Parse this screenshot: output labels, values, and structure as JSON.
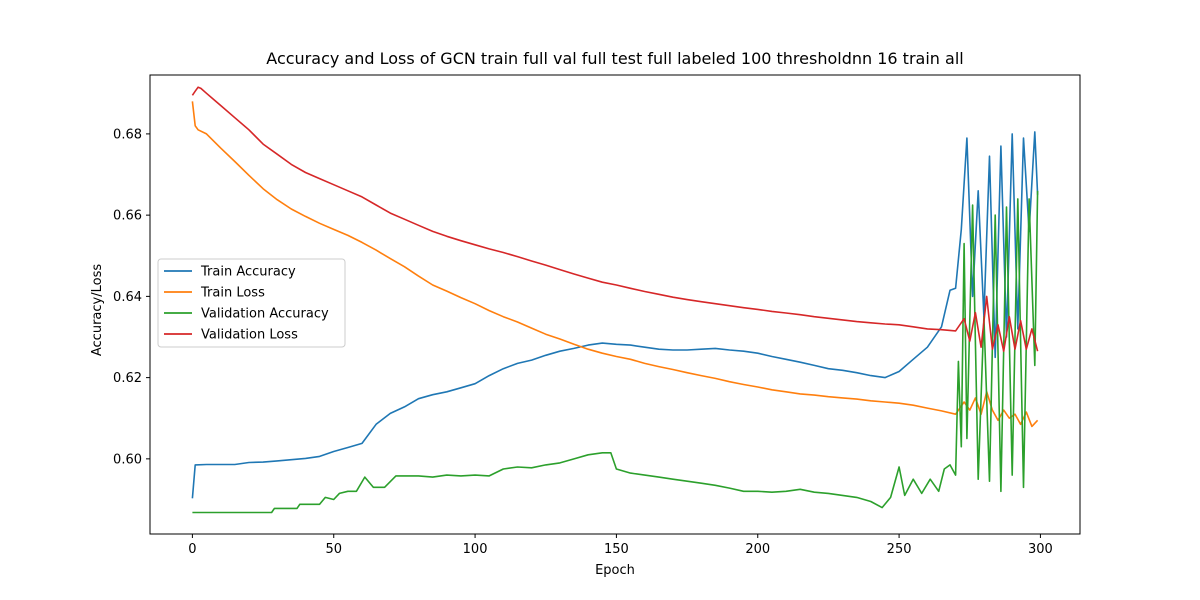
{
  "chart_data": {
    "type": "line",
    "title": "Accuracy and Loss of GCN train full val full test full labeled 100 thresholdnn 16 train all",
    "xlabel": "Epoch",
    "ylabel": "Accuracy/Loss",
    "xlim": [
      -15,
      314
    ],
    "ylim": [
      0.5815,
      0.6945
    ],
    "x_ticks": [
      0,
      50,
      100,
      150,
      200,
      250,
      300
    ],
    "y_ticks": [
      0.6,
      0.62,
      0.64,
      0.66,
      0.68
    ],
    "y_tick_labels": [
      "0.60",
      "0.62",
      "0.64",
      "0.66",
      "0.68"
    ],
    "grid": false,
    "legend_position": "center-left",
    "series": [
      {
        "name": "Train Accuracy",
        "color": "#1f77b4",
        "points": [
          [
            0,
            0.5903
          ],
          [
            1,
            0.5985
          ],
          [
            5,
            0.5986
          ],
          [
            15,
            0.5986
          ],
          [
            20,
            0.5991
          ],
          [
            25,
            0.5992
          ],
          [
            30,
            0.5995
          ],
          [
            35,
            0.5998
          ],
          [
            40,
            0.6001
          ],
          [
            45,
            0.6006
          ],
          [
            50,
            0.6018
          ],
          [
            55,
            0.6028
          ],
          [
            60,
            0.6038
          ],
          [
            65,
            0.6085
          ],
          [
            70,
            0.6112
          ],
          [
            75,
            0.6128
          ],
          [
            80,
            0.6148
          ],
          [
            85,
            0.6158
          ],
          [
            90,
            0.6165
          ],
          [
            95,
            0.6175
          ],
          [
            100,
            0.6185
          ],
          [
            105,
            0.6205
          ],
          [
            110,
            0.6222
          ],
          [
            115,
            0.6235
          ],
          [
            120,
            0.6243
          ],
          [
            125,
            0.6255
          ],
          [
            130,
            0.6265
          ],
          [
            135,
            0.6272
          ],
          [
            140,
            0.628
          ],
          [
            145,
            0.6285
          ],
          [
            150,
            0.6282
          ],
          [
            155,
            0.628
          ],
          [
            160,
            0.6275
          ],
          [
            165,
            0.627
          ],
          [
            170,
            0.6268
          ],
          [
            175,
            0.6268
          ],
          [
            180,
            0.627
          ],
          [
            185,
            0.6272
          ],
          [
            190,
            0.6268
          ],
          [
            195,
            0.6265
          ],
          [
            200,
            0.626
          ],
          [
            205,
            0.6252
          ],
          [
            210,
            0.6245
          ],
          [
            215,
            0.6238
          ],
          [
            220,
            0.623
          ],
          [
            225,
            0.6222
          ],
          [
            230,
            0.6218
          ],
          [
            235,
            0.6212
          ],
          [
            240,
            0.6205
          ],
          [
            245,
            0.62
          ],
          [
            250,
            0.6215
          ],
          [
            255,
            0.6245
          ],
          [
            260,
            0.6275
          ],
          [
            265,
            0.6325
          ],
          [
            268,
            0.6415
          ],
          [
            270,
            0.642
          ],
          [
            272,
            0.6565
          ],
          [
            274,
            0.679
          ],
          [
            276,
            0.64
          ],
          [
            278,
            0.666
          ],
          [
            280,
            0.635
          ],
          [
            282,
            0.6745
          ],
          [
            284,
            0.625
          ],
          [
            286,
            0.677
          ],
          [
            288,
            0.63
          ],
          [
            290,
            0.68
          ],
          [
            292,
            0.632
          ],
          [
            294,
            0.679
          ],
          [
            296,
            0.656
          ],
          [
            298,
            0.6805
          ],
          [
            299,
            0.665
          ]
        ]
      },
      {
        "name": "Train Loss",
        "color": "#ff7f0e",
        "points": [
          [
            0,
            0.688
          ],
          [
            1,
            0.682
          ],
          [
            2,
            0.681
          ],
          [
            5,
            0.68
          ],
          [
            10,
            0.6765
          ],
          [
            15,
            0.6732
          ],
          [
            20,
            0.6698
          ],
          [
            25,
            0.6665
          ],
          [
            30,
            0.6638
          ],
          [
            35,
            0.6615
          ],
          [
            40,
            0.6597
          ],
          [
            45,
            0.658
          ],
          [
            50,
            0.6565
          ],
          [
            55,
            0.655
          ],
          [
            60,
            0.6533
          ],
          [
            65,
            0.6514
          ],
          [
            70,
            0.6493
          ],
          [
            75,
            0.6473
          ],
          [
            80,
            0.645
          ],
          [
            85,
            0.6428
          ],
          [
            90,
            0.6413
          ],
          [
            95,
            0.6397
          ],
          [
            100,
            0.6382
          ],
          [
            105,
            0.6365
          ],
          [
            110,
            0.635
          ],
          [
            115,
            0.6337
          ],
          [
            120,
            0.6322
          ],
          [
            125,
            0.6307
          ],
          [
            130,
            0.6295
          ],
          [
            135,
            0.6282
          ],
          [
            140,
            0.627
          ],
          [
            145,
            0.626
          ],
          [
            150,
            0.6252
          ],
          [
            155,
            0.6245
          ],
          [
            160,
            0.6235
          ],
          [
            165,
            0.6227
          ],
          [
            170,
            0.622
          ],
          [
            175,
            0.6212
          ],
          [
            180,
            0.6205
          ],
          [
            185,
            0.6198
          ],
          [
            190,
            0.619
          ],
          [
            195,
            0.6183
          ],
          [
            200,
            0.6177
          ],
          [
            205,
            0.617
          ],
          [
            210,
            0.6165
          ],
          [
            215,
            0.616
          ],
          [
            220,
            0.6157
          ],
          [
            225,
            0.6153
          ],
          [
            230,
            0.615
          ],
          [
            235,
            0.6147
          ],
          [
            240,
            0.6143
          ],
          [
            245,
            0.614
          ],
          [
            250,
            0.6137
          ],
          [
            255,
            0.6132
          ],
          [
            260,
            0.6125
          ],
          [
            265,
            0.6118
          ],
          [
            270,
            0.611
          ],
          [
            273,
            0.614
          ],
          [
            275,
            0.612
          ],
          [
            277,
            0.615
          ],
          [
            279,
            0.611
          ],
          [
            281,
            0.6165
          ],
          [
            283,
            0.612
          ],
          [
            285,
            0.6095
          ],
          [
            287,
            0.612
          ],
          [
            289,
            0.61
          ],
          [
            291,
            0.611
          ],
          [
            293,
            0.6085
          ],
          [
            295,
            0.6115
          ],
          [
            297,
            0.608
          ],
          [
            299,
            0.6095
          ]
        ]
      },
      {
        "name": "Validation Accuracy",
        "color": "#2ca02c",
        "points": [
          [
            0,
            0.5868
          ],
          [
            10,
            0.5868
          ],
          [
            20,
            0.5868
          ],
          [
            28,
            0.5868
          ],
          [
            29,
            0.5878
          ],
          [
            37,
            0.5878
          ],
          [
            38,
            0.5888
          ],
          [
            45,
            0.5888
          ],
          [
            47,
            0.5905
          ],
          [
            50,
            0.59
          ],
          [
            52,
            0.5915
          ],
          [
            55,
            0.592
          ],
          [
            58,
            0.592
          ],
          [
            61,
            0.5955
          ],
          [
            64,
            0.593
          ],
          [
            68,
            0.593
          ],
          [
            72,
            0.5958
          ],
          [
            80,
            0.5958
          ],
          [
            85,
            0.5955
          ],
          [
            90,
            0.596
          ],
          [
            95,
            0.5958
          ],
          [
            100,
            0.596
          ],
          [
            105,
            0.5958
          ],
          [
            110,
            0.5975
          ],
          [
            115,
            0.598
          ],
          [
            120,
            0.5978
          ],
          [
            125,
            0.5985
          ],
          [
            130,
            0.599
          ],
          [
            135,
            0.6
          ],
          [
            140,
            0.601
          ],
          [
            145,
            0.6015
          ],
          [
            148,
            0.6015
          ],
          [
            150,
            0.5975
          ],
          [
            155,
            0.5965
          ],
          [
            160,
            0.596
          ],
          [
            165,
            0.5955
          ],
          [
            170,
            0.595
          ],
          [
            175,
            0.5945
          ],
          [
            180,
            0.594
          ],
          [
            185,
            0.5935
          ],
          [
            190,
            0.5928
          ],
          [
            195,
            0.592
          ],
          [
            200,
            0.592
          ],
          [
            205,
            0.5918
          ],
          [
            210,
            0.592
          ],
          [
            215,
            0.5925
          ],
          [
            220,
            0.5918
          ],
          [
            225,
            0.5915
          ],
          [
            230,
            0.591
          ],
          [
            235,
            0.5905
          ],
          [
            240,
            0.5895
          ],
          [
            244,
            0.588
          ],
          [
            247,
            0.5905
          ],
          [
            250,
            0.598
          ],
          [
            252,
            0.591
          ],
          [
            255,
            0.595
          ],
          [
            258,
            0.5915
          ],
          [
            261,
            0.595
          ],
          [
            264,
            0.592
          ],
          [
            266,
            0.5975
          ],
          [
            268,
            0.5985
          ],
          [
            270,
            0.596
          ],
          [
            271,
            0.624
          ],
          [
            272,
            0.603
          ],
          [
            273,
            0.653
          ],
          [
            274,
            0.605
          ],
          [
            276,
            0.6625
          ],
          [
            278,
            0.595
          ],
          [
            280,
            0.635
          ],
          [
            282,
            0.5945
          ],
          [
            284,
            0.66
          ],
          [
            286,
            0.592
          ],
          [
            288,
            0.662
          ],
          [
            290,
            0.596
          ],
          [
            292,
            0.664
          ],
          [
            294,
            0.593
          ],
          [
            296,
            0.664
          ],
          [
            298,
            0.623
          ],
          [
            299,
            0.666
          ]
        ]
      },
      {
        "name": "Validation Loss",
        "color": "#d62728",
        "points": [
          [
            0,
            0.6895
          ],
          [
            1,
            0.6905
          ],
          [
            2,
            0.6915
          ],
          [
            3,
            0.6912
          ],
          [
            5,
            0.69
          ],
          [
            8,
            0.6882
          ],
          [
            10,
            0.687
          ],
          [
            15,
            0.684
          ],
          [
            20,
            0.681
          ],
          [
            25,
            0.6775
          ],
          [
            30,
            0.675
          ],
          [
            35,
            0.6725
          ],
          [
            40,
            0.6705
          ],
          [
            45,
            0.669
          ],
          [
            50,
            0.6675
          ],
          [
            55,
            0.666
          ],
          [
            60,
            0.6645
          ],
          [
            65,
            0.6625
          ],
          [
            70,
            0.6605
          ],
          [
            75,
            0.659
          ],
          [
            80,
            0.6575
          ],
          [
            85,
            0.656
          ],
          [
            90,
            0.6548
          ],
          [
            95,
            0.6537
          ],
          [
            100,
            0.6527
          ],
          [
            105,
            0.6517
          ],
          [
            110,
            0.6508
          ],
          [
            115,
            0.6498
          ],
          [
            120,
            0.6487
          ],
          [
            125,
            0.6477
          ],
          [
            130,
            0.6466
          ],
          [
            135,
            0.6455
          ],
          [
            140,
            0.6445
          ],
          [
            145,
            0.6435
          ],
          [
            150,
            0.6428
          ],
          [
            155,
            0.642
          ],
          [
            160,
            0.6412
          ],
          [
            165,
            0.6405
          ],
          [
            170,
            0.6398
          ],
          [
            175,
            0.6392
          ],
          [
            180,
            0.6387
          ],
          [
            185,
            0.6382
          ],
          [
            190,
            0.6377
          ],
          [
            195,
            0.6372
          ],
          [
            200,
            0.6368
          ],
          [
            205,
            0.6363
          ],
          [
            210,
            0.6359
          ],
          [
            215,
            0.6355
          ],
          [
            220,
            0.635
          ],
          [
            225,
            0.6346
          ],
          [
            230,
            0.6342
          ],
          [
            235,
            0.6338
          ],
          [
            240,
            0.6335
          ],
          [
            245,
            0.6332
          ],
          [
            250,
            0.633
          ],
          [
            255,
            0.6325
          ],
          [
            260,
            0.632
          ],
          [
            265,
            0.6318
          ],
          [
            270,
            0.6315
          ],
          [
            273,
            0.6345
          ],
          [
            275,
            0.629
          ],
          [
            277,
            0.636
          ],
          [
            279,
            0.6275
          ],
          [
            281,
            0.64
          ],
          [
            283,
            0.627
          ],
          [
            285,
            0.633
          ],
          [
            287,
            0.6265
          ],
          [
            289,
            0.635
          ],
          [
            291,
            0.627
          ],
          [
            293,
            0.634
          ],
          [
            295,
            0.627
          ],
          [
            297,
            0.632
          ],
          [
            299,
            0.6265
          ]
        ]
      }
    ]
  }
}
